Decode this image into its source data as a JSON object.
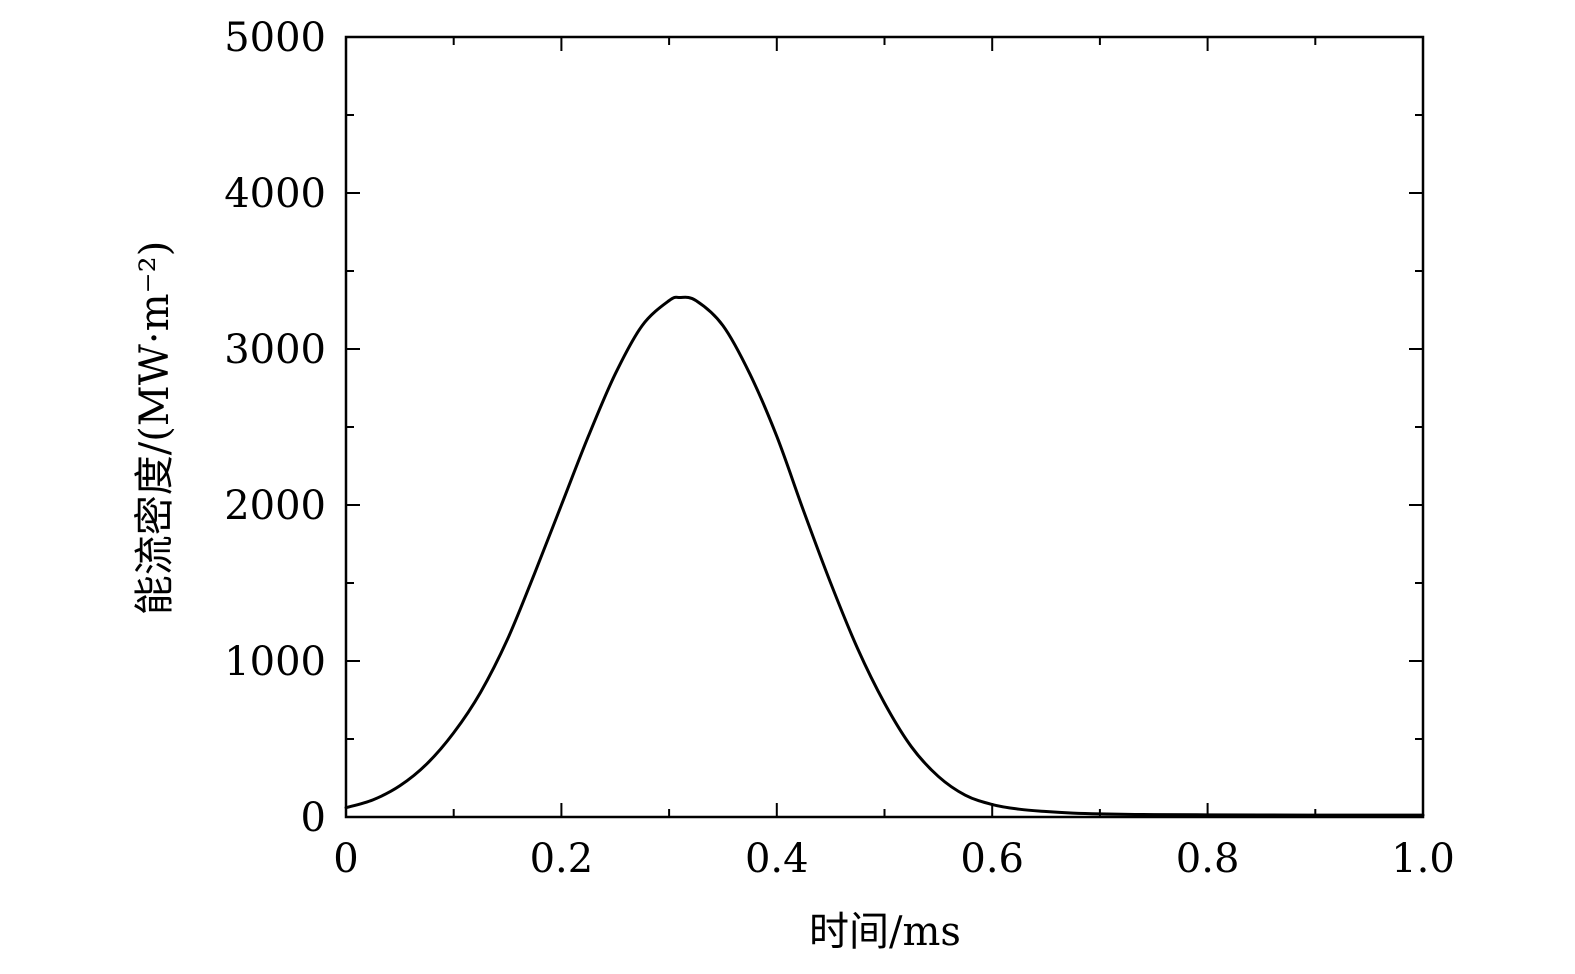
{
  "chart_data": {
    "type": "line",
    "xlabel": "时间/ms",
    "ylabel": "能流密度/(MW·m⁻²)",
    "xlim": [
      0,
      1.0
    ],
    "ylim": [
      0,
      5000
    ],
    "x_ticks": [
      0,
      0.2,
      0.4,
      0.6,
      0.8,
      1.0
    ],
    "x_tick_labels": [
      "0",
      "0.2",
      "0.4",
      "0.6",
      "0.8",
      "1.0"
    ],
    "y_ticks": [
      0,
      1000,
      2000,
      3000,
      4000,
      5000
    ],
    "y_tick_labels": [
      "0",
      "1000",
      "2000",
      "3000",
      "4000",
      "5000"
    ],
    "x_minor_step": 0.1,
    "y_minor_step": 500,
    "grid": false,
    "line_color": "#000000",
    "series": [
      {
        "x": [
          0,
          0.025,
          0.05,
          0.075,
          0.1,
          0.125,
          0.15,
          0.175,
          0.2,
          0.225,
          0.25,
          0.275,
          0.3,
          0.31,
          0.325,
          0.35,
          0.375,
          0.4,
          0.425,
          0.45,
          0.475,
          0.5,
          0.525,
          0.55,
          0.575,
          0.6,
          0.625,
          0.65,
          0.675,
          0.7,
          0.75,
          0.8,
          0.85,
          0.9,
          0.95,
          1.0
        ],
        "y": [
          60,
          110,
          200,
          340,
          540,
          800,
          1140,
          1560,
          2000,
          2440,
          2840,
          3150,
          3310,
          3330,
          3310,
          3150,
          2840,
          2440,
          1960,
          1500,
          1080,
          730,
          450,
          260,
          140,
          80,
          50,
          35,
          25,
          20,
          15,
          14,
          13,
          12,
          12,
          12
        ]
      }
    ]
  }
}
